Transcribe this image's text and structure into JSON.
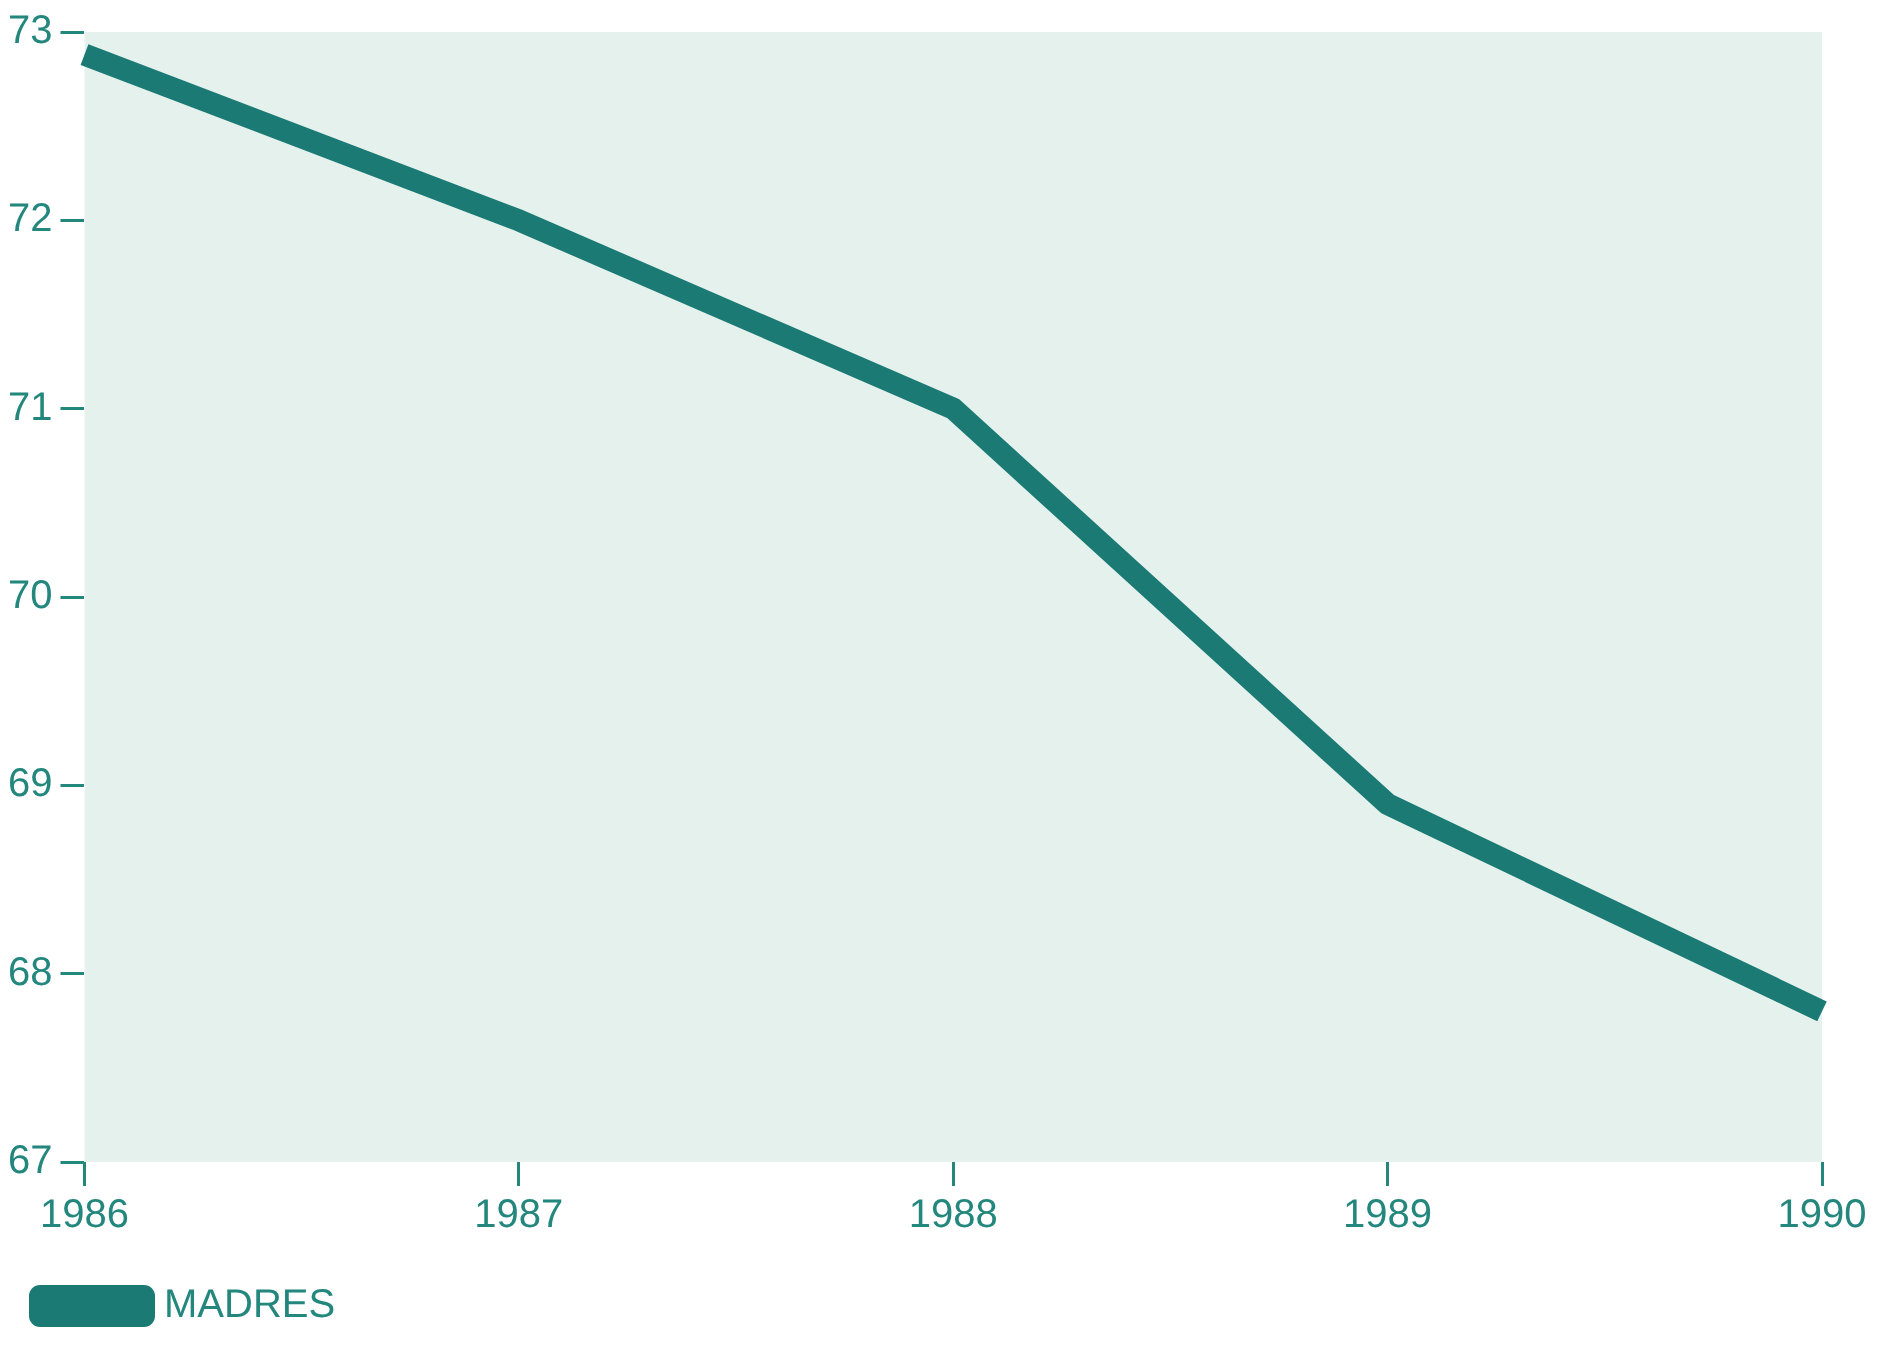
{
  "chart_data": {
    "type": "line",
    "categories": [
      "1986",
      "1987",
      "1988",
      "1989",
      "1990"
    ],
    "series": [
      {
        "name": "MADRES",
        "color": "#1b7a74",
        "values": [
          72.88,
          72.0,
          71.0,
          68.9,
          67.8
        ]
      }
    ],
    "ylim": [
      67,
      73
    ],
    "yticks": [
      67,
      68,
      69,
      70,
      71,
      72,
      73
    ],
    "grid": false,
    "legend": "bottom left",
    "marker": "none",
    "line_style": "solid"
  }
}
